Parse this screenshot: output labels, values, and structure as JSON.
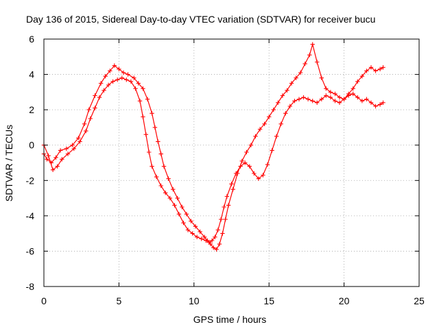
{
  "chart_data": {
    "type": "scatter",
    "title": "Day 136 of 2015, Sidereal Day-to-day VTEC variation (SDTVAR) for receiver bucu",
    "xlabel": "GPS time / hours",
    "ylabel": "SDTVAR / TECUs",
    "xlim": [
      0,
      25
    ],
    "ylim": [
      -8,
      6
    ],
    "xticks": [
      0,
      5,
      10,
      15,
      20,
      25
    ],
    "yticks": [
      -8,
      -6,
      -4,
      -2,
      0,
      2,
      4,
      6
    ],
    "x_tick_labels": [
      "0",
      "5",
      "10",
      "15",
      "20",
      "25"
    ],
    "y_tick_labels": [
      "-8",
      "-6",
      "-4",
      "-2",
      "0",
      "2",
      "4",
      "6"
    ],
    "grid": true,
    "marker": "plus",
    "color": "#ff0000",
    "series": [
      {
        "x": [
          0.0,
          0.2,
          0.5,
          0.8,
          1.1,
          1.5,
          1.9,
          2.3,
          2.7,
          3.0,
          3.4,
          3.8,
          4.1,
          4.4,
          4.7,
          5.0,
          5.3,
          5.6,
          6.0,
          6.3,
          6.6,
          6.9,
          7.2,
          7.4,
          7.6,
          7.8,
          8.0,
          8.3,
          8.6,
          8.9,
          9.2,
          9.5,
          9.8,
          10.1,
          10.4,
          10.7,
          10.9,
          11.1,
          11.3,
          11.5,
          11.7,
          11.9,
          12.1,
          12.3,
          12.6,
          12.9,
          13.2,
          13.5,
          13.8,
          14.1,
          14.4,
          14.7,
          15.0,
          15.3,
          15.6,
          15.9,
          16.2,
          16.5,
          16.8,
          17.1,
          17.4,
          17.7,
          17.9,
          18.2,
          18.5,
          18.8,
          19.1,
          19.4,
          19.7,
          20.0,
          20.3,
          20.6,
          20.9,
          21.2,
          21.5,
          21.8,
          22.1,
          22.4,
          22.6
        ],
        "y": [
          -0.5,
          -0.8,
          -1.0,
          -0.7,
          -0.3,
          -0.2,
          0.0,
          0.4,
          1.2,
          2.0,
          2.8,
          3.5,
          3.9,
          4.2,
          4.5,
          4.3,
          4.1,
          4.0,
          3.8,
          3.5,
          3.2,
          2.6,
          1.8,
          1.0,
          0.2,
          -0.5,
          -1.2,
          -1.9,
          -2.5,
          -3.0,
          -3.5,
          -3.9,
          -4.3,
          -4.6,
          -4.9,
          -5.2,
          -5.4,
          -5.6,
          -5.8,
          -5.9,
          -5.6,
          -5.0,
          -4.2,
          -3.4,
          -2.5,
          -1.6,
          -0.9,
          -0.4,
          0.0,
          0.5,
          0.9,
          1.2,
          1.6,
          2.0,
          2.4,
          2.8,
          3.1,
          3.5,
          3.8,
          4.1,
          4.6,
          5.1,
          5.7,
          4.7,
          3.8,
          3.2,
          3.0,
          2.9,
          2.7,
          2.6,
          2.9,
          3.2,
          3.6,
          3.9,
          4.2,
          4.4,
          4.2,
          4.3,
          4.4
        ]
      },
      {
        "x": [
          0.0,
          0.3,
          0.6,
          0.9,
          1.2,
          1.6,
          2.0,
          2.4,
          2.8,
          3.1,
          3.4,
          3.7,
          4.0,
          4.3,
          4.6,
          4.9,
          5.2,
          5.5,
          5.8,
          6.1,
          6.4,
          6.6,
          6.8,
          7.0,
          7.2,
          7.5,
          7.8,
          8.1,
          8.4,
          8.7,
          9.0,
          9.3,
          9.6,
          9.9,
          10.2,
          10.5,
          10.8,
          11.0,
          11.2,
          11.4,
          11.6,
          11.8,
          12.0,
          12.2,
          12.5,
          12.8,
          13.1,
          13.4,
          13.7,
          14.0,
          14.3,
          14.6,
          14.9,
          15.2,
          15.5,
          15.8,
          16.1,
          16.4,
          16.7,
          17.0,
          17.3,
          17.6,
          17.9,
          18.2,
          18.5,
          18.8,
          19.1,
          19.4,
          19.7,
          20.0,
          20.3,
          20.6,
          20.9,
          21.2,
          21.5,
          21.8,
          22.1,
          22.4,
          22.6
        ],
        "y": [
          0.0,
          -0.6,
          -1.4,
          -1.2,
          -0.8,
          -0.5,
          -0.2,
          0.2,
          0.8,
          1.5,
          2.1,
          2.7,
          3.1,
          3.4,
          3.6,
          3.7,
          3.8,
          3.7,
          3.6,
          3.2,
          2.5,
          1.6,
          0.6,
          -0.4,
          -1.2,
          -1.8,
          -2.3,
          -2.7,
          -3.0,
          -3.4,
          -3.9,
          -4.4,
          -4.8,
          -5.0,
          -5.2,
          -5.3,
          -5.4,
          -5.5,
          -5.4,
          -5.2,
          -4.8,
          -4.2,
          -3.5,
          -2.9,
          -2.2,
          -1.6,
          -1.2,
          -1.0,
          -1.2,
          -1.6,
          -1.9,
          -1.7,
          -1.1,
          -0.3,
          0.5,
          1.2,
          1.8,
          2.2,
          2.5,
          2.6,
          2.7,
          2.6,
          2.5,
          2.4,
          2.6,
          2.8,
          2.7,
          2.5,
          2.4,
          2.6,
          2.8,
          2.9,
          2.7,
          2.5,
          2.6,
          2.4,
          2.2,
          2.3,
          2.4
        ]
      }
    ]
  }
}
